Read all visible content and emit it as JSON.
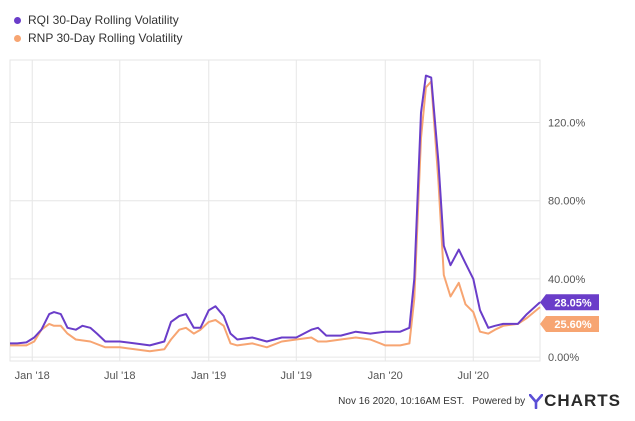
{
  "chart_data": {
    "type": "line",
    "title": "",
    "xlabel": "",
    "ylabel": "",
    "y_unit": "%",
    "ylim": [
      -2,
      152
    ],
    "y_ticks": [
      "0.00%",
      "40.00%",
      "80.00%",
      "120.0%"
    ],
    "y_tick_values": [
      0,
      40,
      80,
      120
    ],
    "x_ticks": [
      "Jan '18",
      "Jul '18",
      "Jan '19",
      "Jul '19",
      "Jan '20",
      "Jul '20"
    ],
    "x_tick_dates": [
      "2018-01-01",
      "2018-07-01",
      "2019-01-01",
      "2019-07-01",
      "2020-01-01",
      "2020-07-01"
    ],
    "x_range": [
      "2017-11-16",
      "2020-11-16"
    ],
    "grid": true,
    "legend_position": "top-left",
    "series": [
      {
        "name": "RQI 30-Day Rolling Volatility",
        "color": "#6a3dc9",
        "end_label": "28.05%",
        "points": [
          [
            "2017-11-16",
            7
          ],
          [
            "2017-12-01",
            7
          ],
          [
            "2017-12-20",
            7.5
          ],
          [
            "2018-01-05",
            10
          ],
          [
            "2018-01-20",
            14
          ],
          [
            "2018-02-05",
            22
          ],
          [
            "2018-02-15",
            23
          ],
          [
            "2018-03-01",
            22
          ],
          [
            "2018-03-15",
            15
          ],
          [
            "2018-04-01",
            14
          ],
          [
            "2018-04-15",
            16
          ],
          [
            "2018-05-01",
            15
          ],
          [
            "2018-05-15",
            12
          ],
          [
            "2018-06-01",
            8
          ],
          [
            "2018-07-01",
            8
          ],
          [
            "2018-08-01",
            7
          ],
          [
            "2018-09-01",
            6
          ],
          [
            "2018-10-01",
            8
          ],
          [
            "2018-10-15",
            18
          ],
          [
            "2018-11-01",
            21
          ],
          [
            "2018-11-15",
            22
          ],
          [
            "2018-12-01",
            15
          ],
          [
            "2018-12-15",
            15
          ],
          [
            "2019-01-01",
            24
          ],
          [
            "2019-01-15",
            26
          ],
          [
            "2019-02-01",
            21
          ],
          [
            "2019-02-15",
            12
          ],
          [
            "2019-03-01",
            9
          ],
          [
            "2019-04-01",
            10
          ],
          [
            "2019-05-01",
            8
          ],
          [
            "2019-06-01",
            10
          ],
          [
            "2019-07-01",
            10
          ],
          [
            "2019-08-01",
            14
          ],
          [
            "2019-08-15",
            15
          ],
          [
            "2019-09-01",
            11
          ],
          [
            "2019-10-01",
            11
          ],
          [
            "2019-11-01",
            13
          ],
          [
            "2019-12-01",
            12
          ],
          [
            "2020-01-01",
            13
          ],
          [
            "2020-02-01",
            13
          ],
          [
            "2020-02-20",
            15
          ],
          [
            "2020-03-01",
            40
          ],
          [
            "2020-03-15",
            125
          ],
          [
            "2020-03-25",
            144
          ],
          [
            "2020-04-05",
            143
          ],
          [
            "2020-04-20",
            100
          ],
          [
            "2020-05-01",
            57
          ],
          [
            "2020-05-15",
            47
          ],
          [
            "2020-06-01",
            55
          ],
          [
            "2020-06-15",
            48
          ],
          [
            "2020-07-01",
            40
          ],
          [
            "2020-07-15",
            24
          ],
          [
            "2020-08-01",
            15
          ],
          [
            "2020-08-15",
            16
          ],
          [
            "2020-09-01",
            17
          ],
          [
            "2020-10-01",
            17
          ],
          [
            "2020-10-20",
            22
          ],
          [
            "2020-11-16",
            28.05
          ]
        ]
      },
      {
        "name": "RNP 30-Day Rolling Volatility",
        "color": "#f7a572",
        "end_label": "25.60%",
        "points": [
          [
            "2017-11-16",
            6
          ],
          [
            "2017-12-01",
            6
          ],
          [
            "2017-12-20",
            6
          ],
          [
            "2018-01-05",
            8
          ],
          [
            "2018-01-20",
            14
          ],
          [
            "2018-02-05",
            17
          ],
          [
            "2018-02-15",
            16
          ],
          [
            "2018-03-01",
            16
          ],
          [
            "2018-03-15",
            12
          ],
          [
            "2018-04-01",
            9
          ],
          [
            "2018-05-01",
            8
          ],
          [
            "2018-06-01",
            5
          ],
          [
            "2018-07-01",
            5
          ],
          [
            "2018-08-01",
            4
          ],
          [
            "2018-09-01",
            3
          ],
          [
            "2018-10-01",
            4
          ],
          [
            "2018-10-15",
            9
          ],
          [
            "2018-11-01",
            14
          ],
          [
            "2018-11-15",
            15
          ],
          [
            "2018-12-01",
            12
          ],
          [
            "2018-12-15",
            14
          ],
          [
            "2019-01-01",
            18
          ],
          [
            "2019-01-15",
            19
          ],
          [
            "2019-02-01",
            16
          ],
          [
            "2019-02-15",
            7
          ],
          [
            "2019-03-01",
            6
          ],
          [
            "2019-04-01",
            7
          ],
          [
            "2019-05-01",
            5
          ],
          [
            "2019-06-01",
            8
          ],
          [
            "2019-07-01",
            9
          ],
          [
            "2019-08-01",
            10
          ],
          [
            "2019-08-15",
            8
          ],
          [
            "2019-09-01",
            8
          ],
          [
            "2019-10-01",
            9
          ],
          [
            "2019-11-01",
            10
          ],
          [
            "2019-12-01",
            9
          ],
          [
            "2020-01-01",
            6
          ],
          [
            "2020-02-01",
            6
          ],
          [
            "2020-02-20",
            7
          ],
          [
            "2020-03-01",
            30
          ],
          [
            "2020-03-15",
            112
          ],
          [
            "2020-03-25",
            138
          ],
          [
            "2020-04-05",
            141
          ],
          [
            "2020-04-20",
            90
          ],
          [
            "2020-05-01",
            42
          ],
          [
            "2020-05-15",
            31
          ],
          [
            "2020-06-01",
            38
          ],
          [
            "2020-06-15",
            27
          ],
          [
            "2020-07-01",
            23
          ],
          [
            "2020-07-15",
            13
          ],
          [
            "2020-08-01",
            12
          ],
          [
            "2020-08-15",
            14
          ],
          [
            "2020-09-01",
            16
          ],
          [
            "2020-10-01",
            17
          ],
          [
            "2020-10-20",
            20
          ],
          [
            "2020-11-16",
            25.6
          ]
        ]
      }
    ]
  },
  "footer": {
    "timestamp": "Nov 16 2020, 10:16AM EST.",
    "powered_by": "Powered by",
    "logo_text": "CHARTS"
  }
}
